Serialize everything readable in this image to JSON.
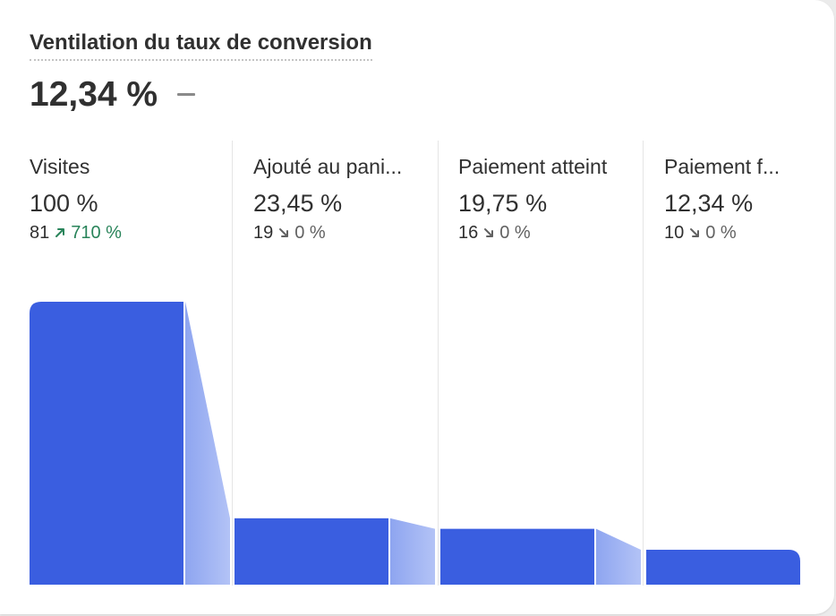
{
  "card": {
    "title": "Ventilation du taux de conversion",
    "value": "12,34 %"
  },
  "colors": {
    "bar": "#3a5ee0",
    "connector_light": "#b3c3f6",
    "connector_dark": "#8ea5f0",
    "up": "#29845a",
    "down": "#616161"
  },
  "chart_data": {
    "type": "bar",
    "categories": [
      "Visites",
      "Ajouté au pani...",
      "Paiement atteint",
      "Paiement f..."
    ],
    "values": [
      100,
      23.45,
      19.75,
      12.34
    ],
    "ylim": [
      0,
      100
    ],
    "stages": [
      {
        "label": "Visites",
        "percent": "100 %",
        "count": "81",
        "change": "710 %",
        "trend": "up"
      },
      {
        "label": "Ajouté au pani...",
        "percent": "23,45 %",
        "count": "19",
        "change": "0 %",
        "trend": "down"
      },
      {
        "label": "Paiement atteint",
        "percent": "19,75 %",
        "count": "16",
        "change": "0 %",
        "trend": "down"
      },
      {
        "label": "Paiement f...",
        "percent": "12,34 %",
        "count": "10",
        "change": "0 %",
        "trend": "down"
      }
    ]
  }
}
